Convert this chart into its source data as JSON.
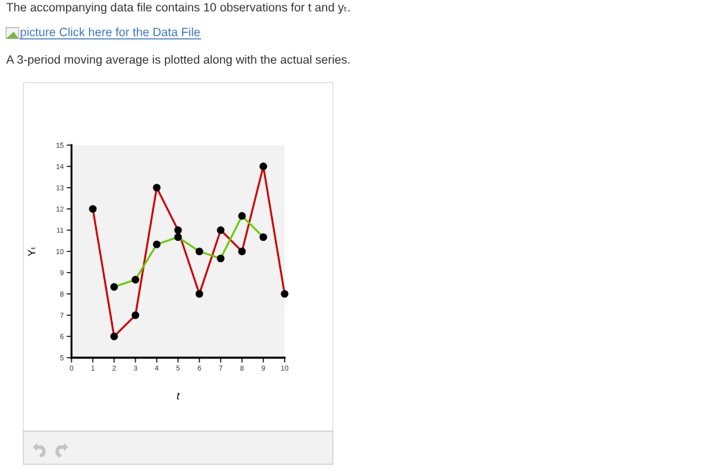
{
  "chart_data": {
    "type": "line",
    "title": "The accompanying data file contains 10 observations for t and yₜ.",
    "subtitle": "A 3-period moving average is plotted along with the actual series.",
    "annotations": [
      "picture Click here for the Data File"
    ],
    "xlabel": "t",
    "ylabel": "Yₜ",
    "series": [
      {
        "color": "#cc0000",
        "x": [
          1,
          2,
          3,
          4,
          5,
          6,
          7,
          8,
          9,
          10
        ],
        "values": [
          12,
          6,
          7,
          13,
          11,
          8,
          11,
          10,
          14,
          8
        ]
      },
      {
        "color": "#66cc00",
        "x": [
          2,
          3,
          4,
          5,
          6,
          7,
          8,
          9
        ],
        "values": [
          8.33,
          8.67,
          10.33,
          10.67,
          10,
          9.67,
          11.67,
          10.67
        ]
      }
    ],
    "xlim": [
      0,
      10
    ],
    "xticks": [
      0,
      1,
      2,
      3,
      4,
      5,
      6,
      7,
      8,
      9,
      10
    ],
    "ylim": [
      5,
      15
    ],
    "yticks": [
      5,
      6,
      7,
      8,
      9,
      10,
      11,
      12,
      13,
      14,
      15
    ],
    "marker": "circle",
    "line_style": "solid",
    "grid": false,
    "legend": false
  }
}
